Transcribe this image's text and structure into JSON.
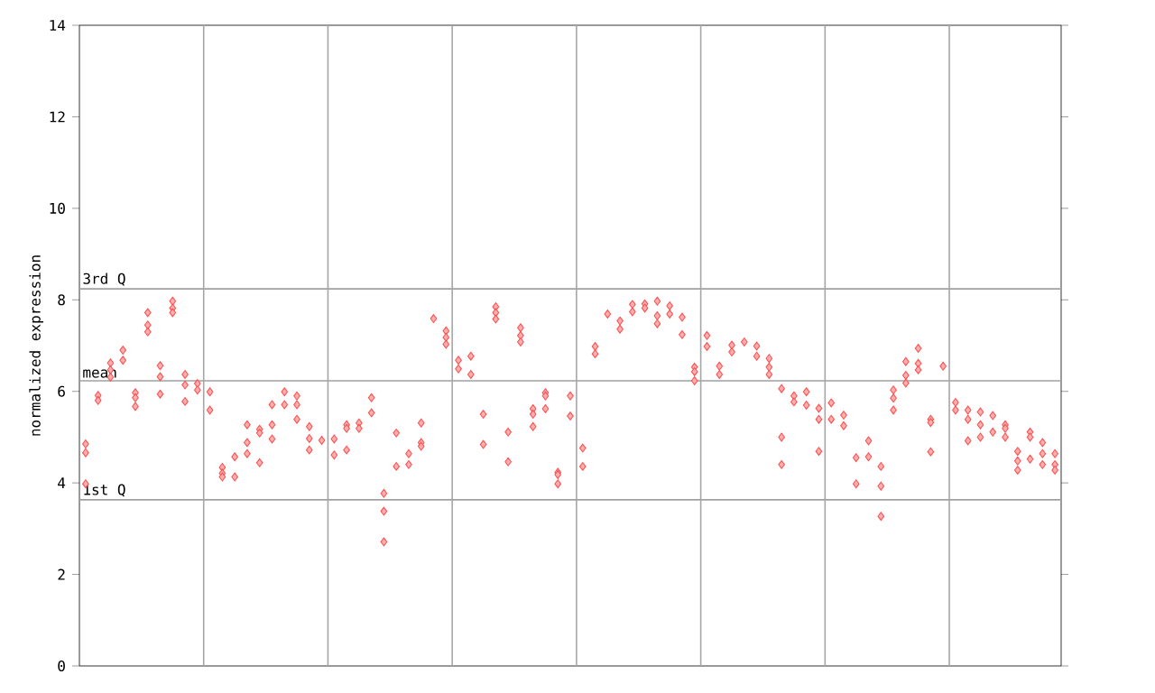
{
  "chart_data": {
    "type": "scatter",
    "ylabel": "normalized expression",
    "marker": "diamond",
    "tick_labels": "y",
    "categories": [
      null,
      null,
      null,
      null,
      null,
      null,
      null,
      null,
      null,
      null,
      null,
      null,
      null,
      null,
      null,
      null,
      null,
      null,
      null,
      null,
      null,
      null,
      null,
      null,
      null,
      null,
      null,
      null,
      null,
      null,
      null,
      null,
      null,
      null,
      null,
      null,
      null,
      null,
      null,
      null,
      null,
      null,
      null,
      null,
      null,
      null,
      null,
      null,
      null,
      null,
      null,
      null,
      null,
      null,
      null,
      null,
      null,
      null,
      null,
      null,
      null,
      null,
      null,
      null,
      null,
      null,
      null,
      null,
      null,
      null,
      null,
      null,
      null,
      null,
      null,
      null,
      null,
      null,
      null
    ],
    "ylim": [
      0,
      14
    ],
    "yticks": [
      0,
      2,
      4,
      6,
      8,
      10,
      12,
      14
    ],
    "ref_lines": [
      {
        "axis": "y",
        "value": 8.24,
        "label": "3rd Q",
        "color": "#a0a0a0"
      },
      {
        "axis": "y",
        "value": 6.23,
        "label": "mean",
        "color": "#a0a0a0"
      },
      {
        "axis": "y",
        "value": 3.63,
        "label": "1st Q",
        "color": "#a0a0a0"
      }
    ],
    "series": [
      {
        "color": "#ff4a4a",
        "values": [
          4.85,
          5.91,
          6.62,
          6.9,
          5.97,
          7.72,
          6.56,
          7.97,
          6.37,
          6.17,
          5.99,
          4.34,
          4.57,
          5.27,
          5.17,
          5.71,
          5.99,
          5.9,
          5.23,
          4.93,
          4.96,
          5.27,
          5.31,
          5.86,
          3.77,
          5.09,
          4.64,
          5.31,
          7.59,
          7.32,
          6.68,
          6.77,
          5.5,
          7.85,
          5.11,
          7.39,
          5.62,
          5.97,
          4.23,
          5.9,
          4.76,
          6.98,
          7.69,
          7.54,
          7.9,
          7.91,
          7.97,
          7.87,
          7.62,
          6.53,
          7.22,
          6.55,
          7.01,
          7.08,
          6.99,
          6.72,
          6.06,
          5.9,
          5.99,
          5.63,
          5.75,
          5.48,
          4.55,
          4.92,
          4.36,
          6.03,
          6.65,
          6.94,
          5.39,
          6.55,
          5.76,
          5.59,
          5.55,
          5.47,
          5.27,
          4.69,
          5.11,
          4.88,
          4.64
        ]
      },
      {
        "color": "#ff4a4a",
        "values": [
          4.66,
          5.8,
          6.47,
          6.68,
          5.86,
          7.45,
          6.32,
          7.82,
          6.14,
          6.03,
          5.59,
          4.21,
          4.13,
          4.88,
          5.09,
          5.27,
          5.71,
          5.71,
          4.97,
          null,
          4.61,
          5.19,
          5.19,
          5.53,
          3.38,
          4.36,
          4.4,
          4.88,
          null,
          7.18,
          6.49,
          6.37,
          4.84,
          7.72,
          4.46,
          7.22,
          5.5,
          5.9,
          4.18,
          5.46,
          4.36,
          6.82,
          null,
          7.36,
          7.74,
          7.82,
          7.65,
          7.69,
          7.24,
          6.43,
          6.98,
          6.37,
          6.86,
          null,
          6.77,
          6.53,
          5.0,
          5.77,
          5.7,
          5.39,
          5.39,
          5.25,
          3.98,
          4.57,
          3.93,
          5.85,
          6.35,
          6.61,
          5.32,
          null,
          5.59,
          5.39,
          5.27,
          5.11,
          5.19,
          4.48,
          5.0,
          4.64,
          4.4
        ]
      },
      {
        "color": "#ff4a4a",
        "values": [
          3.98,
          null,
          6.31,
          null,
          5.67,
          7.3,
          5.94,
          7.72,
          5.78,
          null,
          null,
          4.13,
          null,
          4.64,
          4.44,
          4.96,
          null,
          5.39,
          4.72,
          null,
          null,
          4.72,
          null,
          null,
          2.71,
          null,
          null,
          4.8,
          null,
          7.03,
          null,
          null,
          null,
          7.58,
          null,
          7.08,
          5.23,
          5.62,
          3.98,
          null,
          null,
          null,
          null,
          null,
          null,
          null,
          7.48,
          null,
          null,
          6.23,
          null,
          null,
          null,
          null,
          null,
          6.37,
          4.4,
          null,
          null,
          4.69,
          null,
          null,
          null,
          null,
          3.27,
          5.59,
          6.18,
          6.47,
          4.68,
          null,
          null,
          4.92,
          5.0,
          null,
          5.0,
          4.28,
          4.52,
          4.4,
          4.28
        ]
      }
    ]
  }
}
